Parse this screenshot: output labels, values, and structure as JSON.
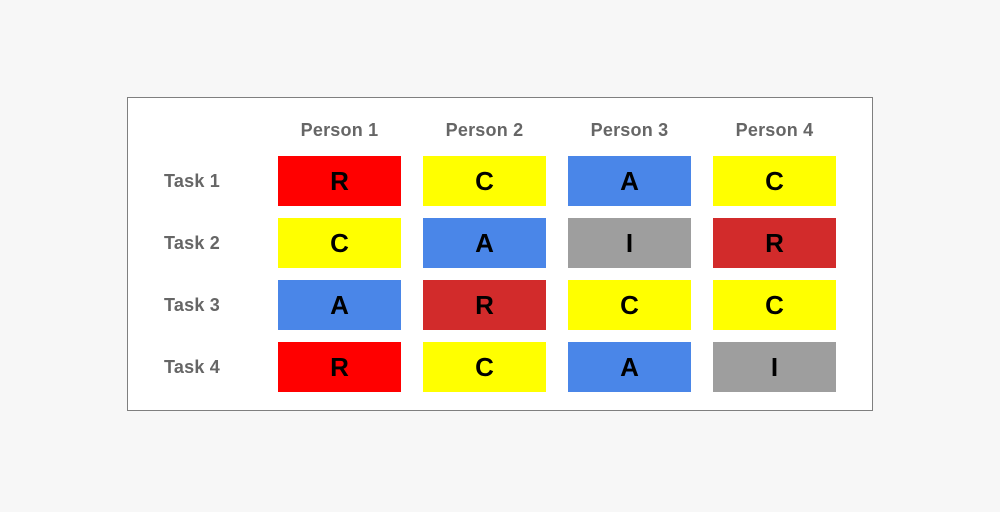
{
  "page": {
    "background": "#f7f7f7"
  },
  "panel": {
    "background": "#ffffff",
    "border_color": "#7f7f7f"
  },
  "palette": {
    "bright_red": "#ff0000",
    "dark_red": "#d22b2b",
    "yellow": "#ffff00",
    "blue": "#4a86e8",
    "gray": "#9e9e9e",
    "letter_color": "#000000",
    "label_color": "#666666"
  },
  "matrix": {
    "columns": [
      "Person 1",
      "Person 2",
      "Person 3",
      "Person 4"
    ],
    "rows": [
      {
        "label": "Task 1",
        "cells": [
          {
            "letter": "R",
            "color": "#ff0000"
          },
          {
            "letter": "C",
            "color": "#ffff00"
          },
          {
            "letter": "A",
            "color": "#4a86e8"
          },
          {
            "letter": "C",
            "color": "#ffff00"
          }
        ]
      },
      {
        "label": "Task 2",
        "cells": [
          {
            "letter": "C",
            "color": "#ffff00"
          },
          {
            "letter": "A",
            "color": "#4a86e8"
          },
          {
            "letter": "I",
            "color": "#9e9e9e"
          },
          {
            "letter": "R",
            "color": "#d22b2b"
          }
        ]
      },
      {
        "label": "Task 3",
        "cells": [
          {
            "letter": "A",
            "color": "#4a86e8"
          },
          {
            "letter": "R",
            "color": "#d22b2b"
          },
          {
            "letter": "C",
            "color": "#ffff00"
          },
          {
            "letter": "C",
            "color": "#ffff00"
          }
        ]
      },
      {
        "label": "Task 4",
        "cells": [
          {
            "letter": "R",
            "color": "#ff0000"
          },
          {
            "letter": "C",
            "color": "#ffff00"
          },
          {
            "letter": "A",
            "color": "#4a86e8"
          },
          {
            "letter": "I",
            "color": "#9e9e9e"
          }
        ]
      }
    ]
  }
}
